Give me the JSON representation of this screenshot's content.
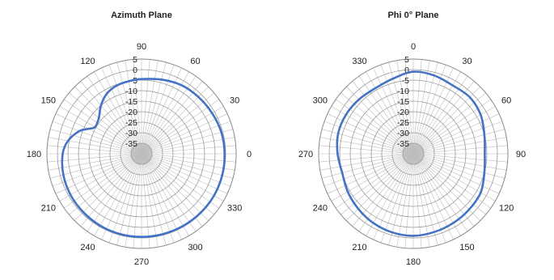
{
  "chart_data": [
    {
      "type": "polar",
      "title": "Azimuth Plane",
      "angle_labels": [
        "0",
        "30",
        "60",
        "90",
        "120",
        "150",
        "180",
        "210",
        "240",
        "270",
        "300",
        "330"
      ],
      "angle_label_degrees": [
        0,
        30,
        60,
        90,
        120,
        150,
        180,
        210,
        240,
        270,
        300,
        330
      ],
      "angle_direction": "counterclockwise",
      "zero_position": "right",
      "radial_tick_labels": [
        "5",
        "0",
        "-5",
        "-10",
        "-15",
        "-20",
        "-25",
        "-30",
        "-35"
      ],
      "rlim": [
        -40,
        5
      ],
      "grid": true,
      "series_color": "#4472C4",
      "series": [
        {
          "angles": [
            0,
            15,
            30,
            45,
            60,
            75,
            90,
            100,
            110,
            120,
            130,
            140,
            150,
            155,
            160,
            170,
            180,
            195,
            210,
            225,
            240,
            255,
            270,
            285,
            300,
            315,
            330,
            345,
            360
          ],
          "values": [
            -0.5,
            -0.7,
            -1.3,
            -1.8,
            -2.3,
            -3.5,
            -4.5,
            -5.0,
            -5.5,
            -7.0,
            -10.0,
            -13.5,
            -14.5,
            -12.0,
            -8.5,
            -4.5,
            -2.5,
            -1.5,
            -1.0,
            -0.8,
            -0.6,
            -0.5,
            -0.5,
            -0.5,
            -0.4,
            -0.3,
            -0.2,
            -0.3,
            -0.5
          ]
        }
      ]
    },
    {
      "type": "polar",
      "title": "Phi 0° Plane",
      "angle_labels": [
        "0",
        "30",
        "60",
        "90",
        "120",
        "150",
        "180",
        "210",
        "240",
        "270",
        "300",
        "330"
      ],
      "angle_label_degrees": [
        0,
        30,
        60,
        90,
        120,
        150,
        180,
        210,
        240,
        270,
        300,
        330
      ],
      "angle_direction": "clockwise",
      "zero_position": "top",
      "radial_tick_labels": [
        "5",
        "0",
        "-5",
        "-10",
        "-15",
        "-20",
        "-25",
        "-30",
        "-35"
      ],
      "rlim": [
        -40,
        5
      ],
      "grid": true,
      "series_color": "#4472C4",
      "series": [
        {
          "angles": [
            0,
            15,
            30,
            45,
            60,
            75,
            90,
            105,
            120,
            135,
            150,
            165,
            180,
            195,
            210,
            225,
            240,
            255,
            270,
            285,
            300,
            315,
            330,
            345,
            360
          ],
          "values": [
            -1.0,
            -1.5,
            -2.5,
            -2.0,
            -3.0,
            -5.0,
            -6.0,
            -5.0,
            -3.0,
            -2.5,
            -2.0,
            -1.5,
            -1.0,
            -1.3,
            -2.0,
            -3.0,
            -4.0,
            -5.0,
            -4.0,
            -3.0,
            -3.0,
            -3.5,
            -4.0,
            -3.0,
            -1.0
          ]
        }
      ]
    }
  ]
}
